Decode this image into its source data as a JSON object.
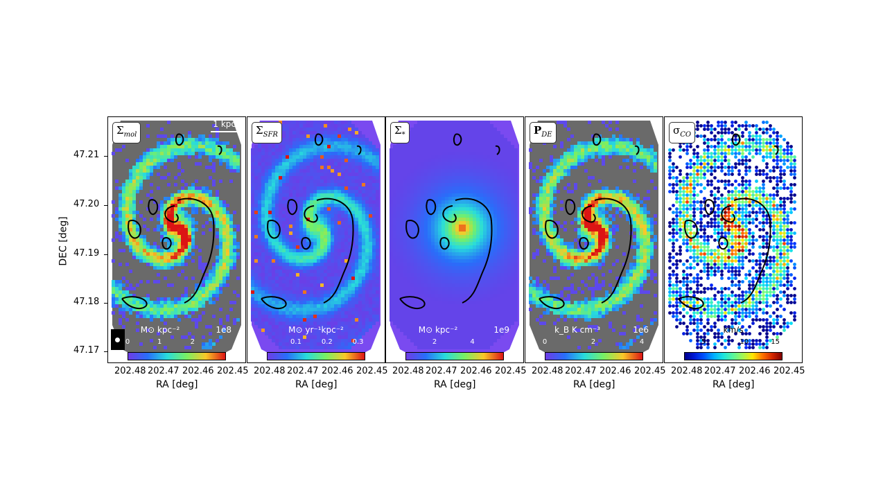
{
  "panels": [
    {
      "id": "mol",
      "label_main": "Σ",
      "label_sub": "mol",
      "bg": "gray",
      "colormap": "rainbow",
      "cbar_unit": "M⊙ kpc⁻²",
      "cbar_exp": "1e8",
      "cbar_ticks": [
        "0",
        "1",
        "2"
      ],
      "cbar_tick_pos": [
        0.0,
        0.33,
        0.67
      ],
      "scalebar": "1 kpc",
      "beam": true
    },
    {
      "id": "sfr",
      "label_main": "Σ",
      "label_sub": "SFR",
      "bg": "purple",
      "colormap": "rainbow",
      "cbar_unit": "M⊙ yr⁻¹kpc⁻²",
      "cbar_exp": "",
      "cbar_ticks": [
        "0.1",
        "0.2",
        "0.3"
      ],
      "cbar_tick_pos": [
        0.3,
        0.62,
        0.94
      ]
    },
    {
      "id": "star",
      "label_main": "Σ",
      "label_sub": "*",
      "bg": "purple",
      "colormap": "rainbow",
      "cbar_unit": "M⊙ kpc⁻²",
      "cbar_exp": "1e9",
      "cbar_ticks": [
        "2",
        "4"
      ],
      "cbar_tick_pos": [
        0.3,
        0.69
      ]
    },
    {
      "id": "pde",
      "label_main": "P",
      "label_sub": "DE",
      "bg": "gray",
      "colormap": "rainbow",
      "cbar_unit": "k_B K cm⁻³",
      "cbar_exp": "1e6",
      "cbar_ticks": [
        "0",
        "2",
        "4"
      ],
      "cbar_tick_pos": [
        0.0,
        0.5,
        1.0
      ]
    },
    {
      "id": "sigco",
      "label_main": "σ",
      "label_sub": "CO",
      "bg": "white",
      "colormap": "jet",
      "cbar_unit": "km/s",
      "cbar_exp": "",
      "cbar_ticks": [
        "5",
        "10",
        "15"
      ],
      "cbar_tick_pos": [
        0.2,
        0.62,
        0.94
      ]
    }
  ],
  "axes": {
    "ylabel": "DEC [deg]",
    "xlabel": "RA [deg]",
    "yticks": [
      "47.21",
      "47.20",
      "47.19",
      "47.18",
      "47.17"
    ],
    "xticks": [
      "202.48",
      "202.47",
      "202.46",
      "202.45"
    ]
  },
  "colors": {
    "gray": "#6a6a6a",
    "purple": "#7a4af0",
    "white": "#ffffff"
  }
}
